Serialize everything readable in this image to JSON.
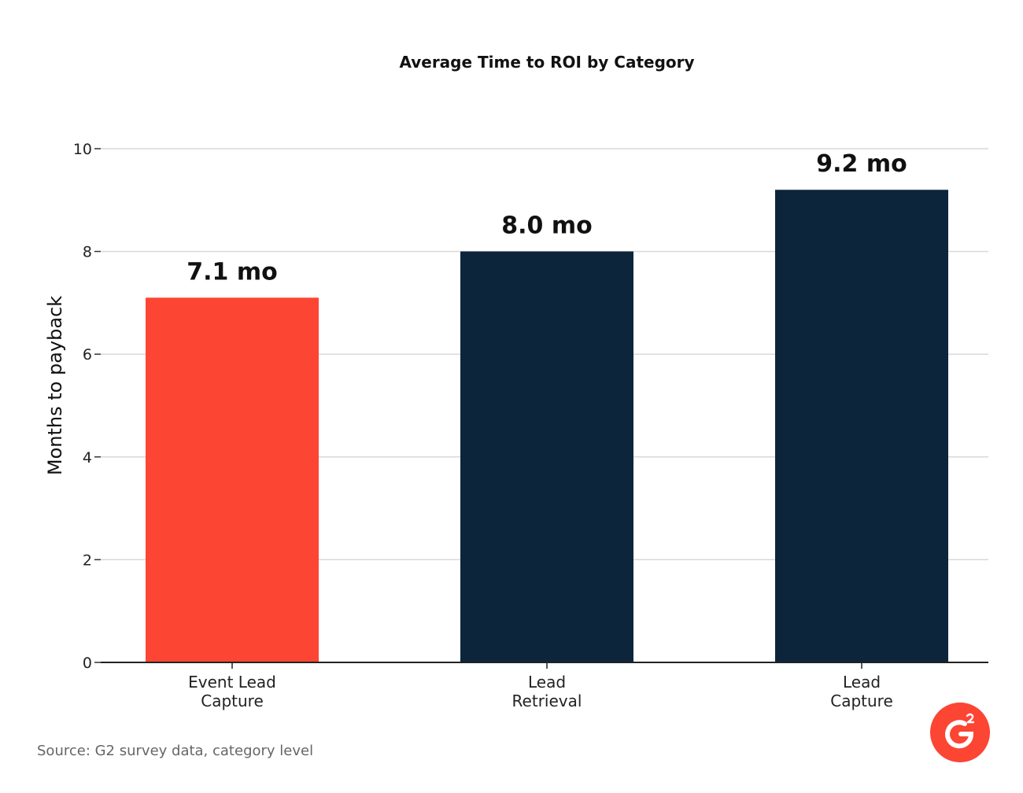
{
  "chart_data": {
    "type": "bar",
    "title": "Average Time to ROI by Category",
    "ylabel": "Months to payback",
    "xlabel": "",
    "ylim": [
      0,
      10
    ],
    "yticks": [
      0,
      2,
      4,
      6,
      8,
      10
    ],
    "grid": true,
    "categories": [
      [
        "Event Lead",
        "Capture"
      ],
      [
        "Lead",
        "Retrieval"
      ],
      [
        "Lead",
        "Capture"
      ]
    ],
    "values": [
      7.1,
      8.0,
      9.2
    ],
    "data_labels": [
      "7.1 mo",
      "8.0 mo",
      "9.2 mo"
    ],
    "colors": [
      "#FC4532",
      "#0D253B",
      "#0D253B"
    ]
  },
  "footer": {
    "source": "Source: G2 survey data, category level"
  },
  "logo": {
    "icon": "g2-logo-icon",
    "color": "#FC4532",
    "text": "G2"
  }
}
